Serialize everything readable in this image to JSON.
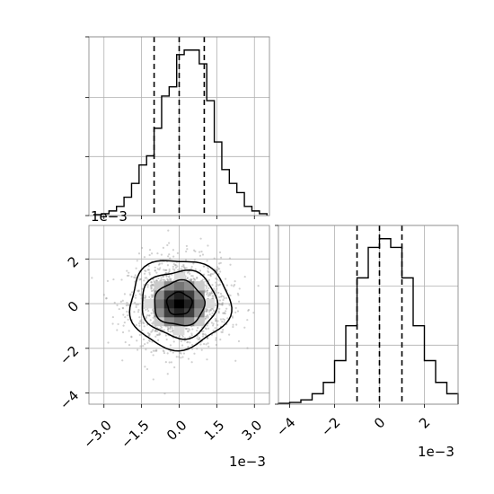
{
  "chart_data": [
    {
      "type": "histogram",
      "panel": "top-left marginal",
      "x_bin_edges": [
        -0.0034,
        -0.0031,
        -0.0028,
        -0.0025,
        -0.0022,
        -0.0019,
        -0.0016,
        -0.0013,
        -0.001,
        -0.0007,
        -0.0004,
        -0.0001,
        0.0002,
        0.0005,
        0.0008,
        0.0011,
        0.0014,
        0.0017,
        0.002,
        0.0023,
        0.0026,
        0.0029,
        0.0032,
        0.0035
      ],
      "counts": [
        1,
        2,
        5,
        10,
        20,
        35,
        55,
        65,
        95,
        130,
        140,
        175,
        180,
        180,
        165,
        125,
        80,
        50,
        35,
        25,
        10,
        5,
        2
      ],
      "xlim": [
        -0.0036,
        0.0036
      ],
      "x_tick_values": [
        -0.003,
        -0.0015,
        0.0,
        0.0015,
        0.003
      ],
      "quantile_lines": [
        -0.001,
        0.0,
        0.001
      ],
      "grid": true
    },
    {
      "type": "scatter",
      "panel": "bottom-left joint",
      "xlim": [
        -0.0036,
        0.0036
      ],
      "ylim": [
        -0.0045,
        0.0035
      ],
      "x_tick_labels": [
        "-3.0",
        "-1.5",
        "0.0",
        "1.5",
        "3.0"
      ],
      "x_tick_values": [
        -0.003,
        -0.0015,
        0.0,
        0.0015,
        0.003
      ],
      "y_tick_labels": [
        "2",
        "0",
        "-2",
        "-4"
      ],
      "y_tick_values": [
        0.002,
        0.0,
        -0.002,
        -0.004
      ],
      "x_offset_label": "1e−3",
      "y_offset_label": "1e−3",
      "center": [
        0.0,
        0.0
      ],
      "sigma": [
        0.001,
        0.001
      ],
      "contour_levels_sigma": [
        0.5,
        1.0,
        1.5,
        2.0
      ],
      "grid": true
    },
    {
      "type": "histogram",
      "panel": "bottom-right marginal",
      "x_bin_edges": [
        -0.0045,
        -0.004,
        -0.0035,
        -0.003,
        -0.0025,
        -0.002,
        -0.0015,
        -0.001,
        -0.0005,
        0.0,
        0.0005,
        0.001,
        0.0015,
        0.002,
        0.0025,
        0.003,
        0.0035
      ],
      "counts": [
        1,
        2,
        5,
        12,
        25,
        50,
        90,
        145,
        180,
        190,
        180,
        145,
        90,
        50,
        25,
        12
      ],
      "xlim": [
        -0.0045,
        0.0035
      ],
      "x_tick_labels": [
        "-4",
        "-2",
        "0",
        "2"
      ],
      "x_tick_values": [
        -0.004,
        -0.002,
        0.0,
        0.002
      ],
      "x_offset_label": "1e−3",
      "quantile_lines": [
        -0.001,
        0.0,
        0.001
      ],
      "grid": true
    }
  ],
  "scatter_color": "#999999",
  "line_color": "#000000",
  "grid_color": "#b0b0b0"
}
